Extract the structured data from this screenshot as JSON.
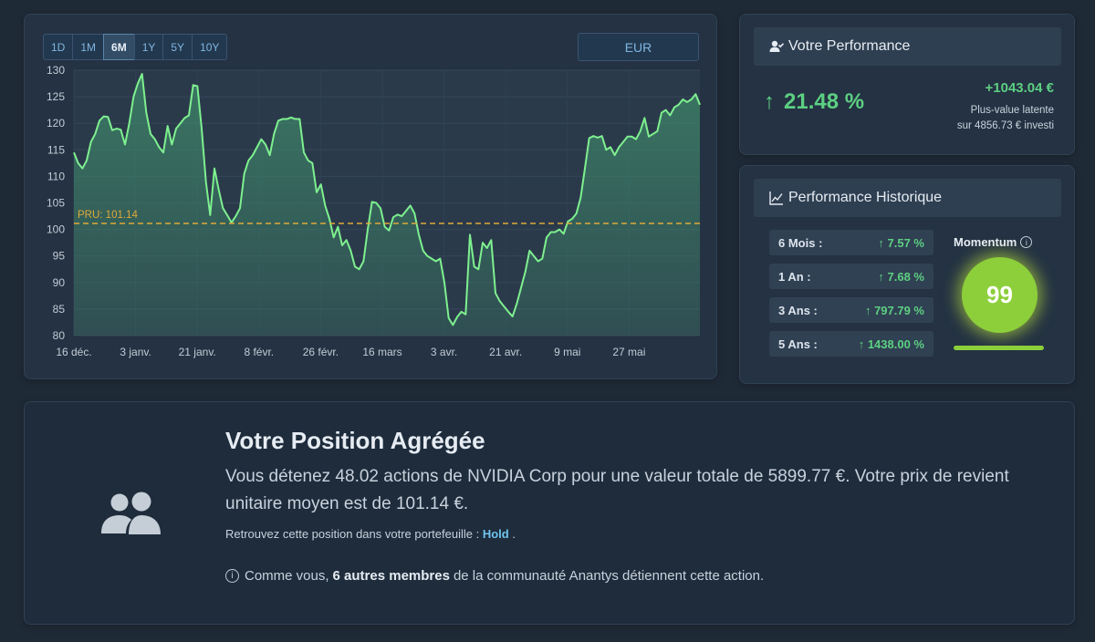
{
  "chart_card": {
    "ranges": [
      {
        "label": "1D",
        "active": false
      },
      {
        "label": "1M",
        "active": false
      },
      {
        "label": "6M",
        "active": true
      },
      {
        "label": "1Y",
        "active": false
      },
      {
        "label": "5Y",
        "active": false
      },
      {
        "label": "10Y",
        "active": false
      }
    ],
    "currency": "EUR"
  },
  "chart_data": {
    "type": "area",
    "ylim": [
      80,
      130
    ],
    "yticks": [
      80,
      85,
      90,
      95,
      100,
      105,
      110,
      115,
      120,
      125,
      130
    ],
    "xticks": [
      "16 déc.",
      "3 janv.",
      "21 janv.",
      "8 févr.",
      "26 févr.",
      "16 mars",
      "3 avr.",
      "21 avr.",
      "9 mai",
      "27 mai"
    ],
    "reference_line": {
      "label": "PRU: 101.14",
      "value": 101.14,
      "color": "#e0a93a"
    },
    "line_color": "#7ef08f",
    "fill_color": "#3f8a6a",
    "grid": true,
    "values": [
      114.5,
      112.5,
      111.5,
      113,
      116.5,
      118,
      120.5,
      121.3,
      121.2,
      118.7,
      119,
      118.8,
      116,
      120,
      125,
      127.5,
      129.3,
      122,
      118,
      117,
      115.5,
      114.5,
      119.5,
      116,
      119,
      120,
      121,
      121.5,
      127.2,
      127,
      119,
      109,
      102.7,
      111.5,
      107.5,
      104,
      102.7,
      101.3,
      102.5,
      104,
      110.5,
      113,
      114,
      115.5,
      117,
      116,
      114,
      118,
      120.5,
      120.8,
      120.8,
      121.1,
      120.8,
      120.8,
      114.5,
      113,
      112.5,
      107,
      108.5,
      104.5,
      102,
      98.5,
      100.5,
      97,
      98,
      96,
      93,
      92.5,
      94,
      100,
      105.2,
      105,
      104,
      100.5,
      99.8,
      102.3,
      102.8,
      102.5,
      103.5,
      104.5,
      103,
      99,
      96,
      95,
      94.5,
      94,
      94.5,
      90,
      83.3,
      82,
      83.5,
      84.5,
      84,
      99,
      93,
      92.5,
      97.5,
      96.5,
      98,
      88,
      86.5,
      85.5,
      84.5,
      83.6,
      86,
      89,
      92,
      96,
      95,
      94,
      94.5,
      98.5,
      99.5,
      99.5,
      100,
      99.2,
      101.5,
      102,
      103,
      106,
      111.5,
      117.2,
      117.6,
      117.3,
      117.6,
      115,
      115.5,
      114,
      115.5,
      116.5,
      117.5,
      117.5,
      117,
      118.5,
      121,
      117.5,
      118,
      118.5,
      122,
      122.5,
      121.5,
      123,
      123.5,
      124.5,
      124,
      124.5,
      125.5,
      123.5
    ]
  },
  "performance": {
    "title": "Votre Performance",
    "percent": "21.48 %",
    "gain": "+1043.04 €",
    "sub1": "Plus-value latente",
    "sub2": "sur 4856.73 € investi"
  },
  "historique": {
    "title": "Performance Historique",
    "rows": [
      {
        "label": "6 Mois :",
        "value": "7.57 %"
      },
      {
        "label": "1 An :",
        "value": "7.68 %"
      },
      {
        "label": "3 Ans :",
        "value": "797.79 %"
      },
      {
        "label": "5 Ans :",
        "value": "1438.00 %"
      }
    ],
    "momentum_label": "Momentum",
    "momentum_value": "99",
    "momentum_color": "#8ccf3a"
  },
  "position": {
    "title": "Votre Position Agrégée",
    "text": "Vous détenez 48.02 actions de NVIDIA Corp pour une valeur totale de 5899.77 €. Votre prix de revient unitaire moyen est de 101.14 €.",
    "link_prefix": "Retrouvez cette position dans votre portefeuille :",
    "link_label": "Hold",
    "link_suffix": ".",
    "members_prefix": "Comme vous,",
    "members_bold": "6 autres membres",
    "members_suffix": "de la communauté Anantys détiennent cette action."
  }
}
